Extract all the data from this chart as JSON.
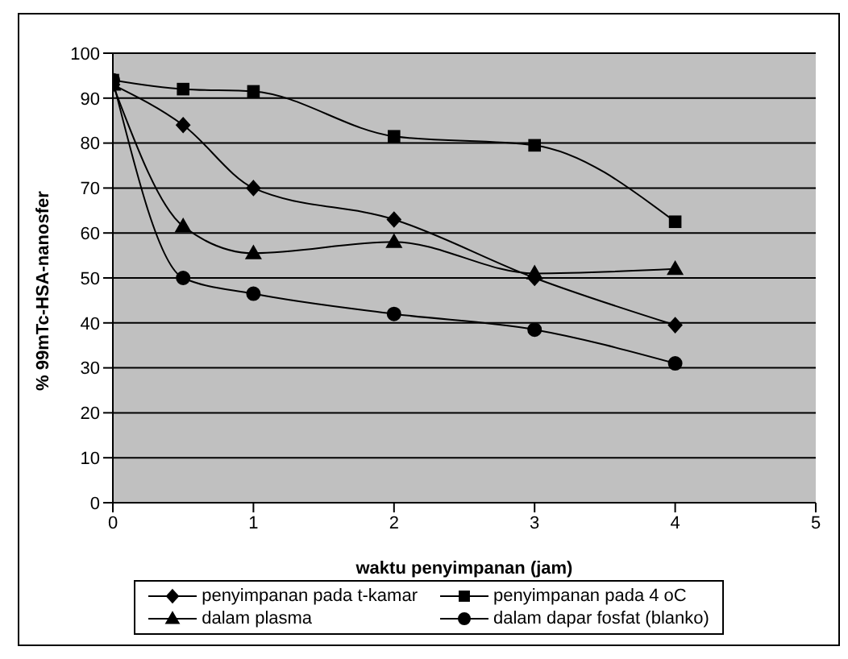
{
  "chart_data": {
    "type": "line",
    "xlabel": "waktu penyimpanan (jam)",
    "ylabel": "% 99mTc-HSA-nanosfer",
    "x": [
      0,
      0.5,
      1,
      2,
      3,
      4
    ],
    "series": [
      {
        "name": "penyimpanan pada t-kamar",
        "color": "#000000",
        "marker": "diamond",
        "values": [
          93,
          84,
          70,
          63,
          50,
          39.5
        ]
      },
      {
        "name": "penyimpanan pada 4 oC",
        "color": "#000000",
        "marker": "square",
        "values": [
          94,
          92,
          91.5,
          81.5,
          79.5,
          62.5
        ]
      },
      {
        "name": "dalam plasma",
        "color": "#000000",
        "marker": "triangle",
        "values": [
          93,
          61.5,
          55.5,
          58,
          51,
          52
        ]
      },
      {
        "name": "dalam dapar fosfat (blanko)",
        "color": "#000000",
        "marker": "circle",
        "values": [
          94,
          50,
          46.5,
          42,
          38.5,
          31
        ]
      }
    ],
    "xlim": [
      0,
      5
    ],
    "xticks": [
      0,
      1,
      2,
      3,
      4,
      5
    ],
    "ylim": [
      0,
      100
    ],
    "yticks": [
      0,
      10,
      20,
      30,
      40,
      50,
      60,
      70,
      80,
      90,
      100
    ],
    "grid": "y",
    "legend": "bottom",
    "line_style": "solid"
  }
}
